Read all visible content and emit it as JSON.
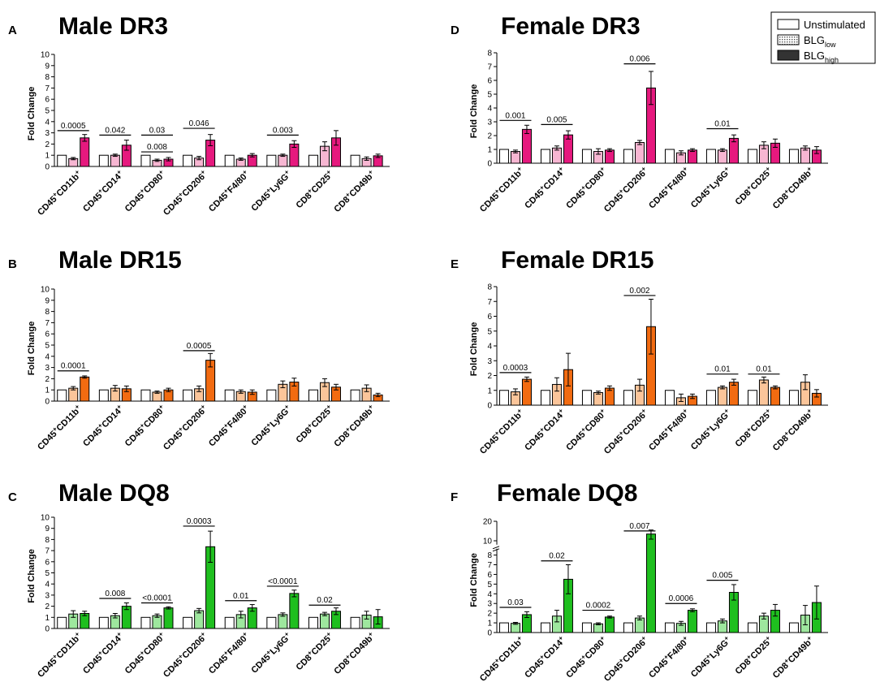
{
  "legend": {
    "items": [
      {
        "label": "Unstimulated",
        "sub": "",
        "style": "open"
      },
      {
        "label": "BLG",
        "sub": "low",
        "style": "dotted"
      },
      {
        "label": "BLG",
        "sub": "high",
        "style": "dark"
      }
    ]
  },
  "chart_data": [
    {
      "panel": "A",
      "title": "Male  DR3",
      "type": "bar",
      "ylabel": "Fold Change",
      "ylim": [
        0,
        10
      ],
      "yticks": [
        0,
        1,
        2,
        3,
        4,
        5,
        6,
        7,
        8,
        9,
        10
      ],
      "color_low": "#f7b6d2",
      "color_high": "#e6197e",
      "categories": [
        [
          "CD45",
          "+",
          "CD11b",
          "+"
        ],
        [
          "CD45",
          "+",
          "CD14",
          "+"
        ],
        [
          "CD45",
          "+",
          "CD80",
          "+"
        ],
        [
          "CD45",
          "+",
          "CD206",
          "+"
        ],
        [
          "CD45",
          "+",
          "F4/80",
          "+"
        ],
        [
          "CD45",
          "+",
          "Ly6G",
          "+"
        ],
        [
          "CD8",
          "+",
          "CD25",
          "+"
        ],
        [
          "CD8",
          "+",
          "CD49b",
          "+"
        ]
      ],
      "series": [
        {
          "name": "Unstimulated",
          "values": [
            1,
            1,
            1,
            1,
            1,
            1,
            1,
            1
          ],
          "errors": [
            0,
            0,
            0,
            0,
            0,
            0,
            0,
            0
          ]
        },
        {
          "name": "BLG low",
          "values": [
            0.7,
            1.0,
            0.55,
            0.75,
            0.65,
            1.0,
            1.8,
            0.7
          ],
          "errors": [
            0.1,
            0.1,
            0.1,
            0.15,
            0.1,
            0.1,
            0.4,
            0.15
          ]
        },
        {
          "name": "BLG high",
          "values": [
            2.55,
            1.9,
            0.65,
            2.35,
            1.0,
            2.0,
            2.55,
            0.95
          ],
          "errors": [
            0.3,
            0.45,
            0.15,
            0.5,
            0.15,
            0.3,
            0.65,
            0.15
          ]
        }
      ],
      "sig": [
        {
          "label": "0.0005",
          "from": 0,
          "to": 0,
          "y": 3.2
        },
        {
          "label": "0.042",
          "from": 1,
          "to": 1,
          "y": 2.8
        },
        {
          "label": "0.008",
          "from": 2,
          "to": 2,
          "y": 1.3
        },
        {
          "label": "0.03",
          "from": 2,
          "to": 2,
          "y": 2.8
        },
        {
          "label": "0.046",
          "from": 3,
          "to": 3,
          "y": 3.4
        },
        {
          "label": "0.003",
          "from": 5,
          "to": 5,
          "y": 2.8
        }
      ]
    },
    {
      "panel": "D",
      "title": "Female  DR3",
      "type": "bar",
      "ylabel": "Fold Change",
      "ylim": [
        0,
        8
      ],
      "yticks": [
        0,
        1,
        2,
        3,
        4,
        5,
        6,
        7,
        8
      ],
      "color_low": "#f7b6d2",
      "color_high": "#e6197e",
      "categories": [
        [
          "CD45",
          "+",
          "CD11b",
          "+"
        ],
        [
          "CD45",
          "+",
          "CD14",
          "+"
        ],
        [
          "CD45",
          "+",
          "CD80",
          "+"
        ],
        [
          "CD45",
          "+",
          "CD206",
          "+"
        ],
        [
          "CD45",
          "+",
          "F4/80",
          "+"
        ],
        [
          "CD45",
          "+",
          "Ly6G",
          "+"
        ],
        [
          "CD8",
          "+",
          "CD25",
          "+"
        ],
        [
          "CD8",
          "+",
          "CD49b",
          "+"
        ]
      ],
      "series": [
        {
          "name": "Unstimulated",
          "values": [
            1,
            1,
            1,
            1,
            1,
            1,
            1,
            1
          ],
          "errors": [
            0,
            0,
            0,
            0,
            0,
            0,
            0,
            0
          ]
        },
        {
          "name": "BLG low",
          "values": [
            0.85,
            1.1,
            0.85,
            1.5,
            0.75,
            0.95,
            1.3,
            1.1
          ],
          "errors": [
            0.1,
            0.15,
            0.2,
            0.15,
            0.15,
            0.1,
            0.25,
            0.15
          ]
        },
        {
          "name": "BLG high",
          "values": [
            2.45,
            2.05,
            0.95,
            5.45,
            0.95,
            1.8,
            1.45,
            0.95
          ],
          "errors": [
            0.3,
            0.3,
            0.1,
            1.2,
            0.1,
            0.25,
            0.3,
            0.25
          ]
        }
      ],
      "sig": [
        {
          "label": "0.001",
          "from": 0,
          "to": 0,
          "y": 3.1
        },
        {
          "label": "0.005",
          "from": 1,
          "to": 1,
          "y": 2.8
        },
        {
          "label": "0.006",
          "from": 3,
          "to": 3,
          "y": 7.2
        },
        {
          "label": "0.01",
          "from": 5,
          "to": 5,
          "y": 2.5
        }
      ]
    },
    {
      "panel": "B",
      "title": "Male DR15",
      "type": "bar",
      "ylabel": "Fold Change",
      "ylim": [
        0,
        10
      ],
      "yticks": [
        0,
        1,
        2,
        3,
        4,
        5,
        6,
        7,
        8,
        9,
        10
      ],
      "color_low": "#fbc59a",
      "color_high": "#f26b11",
      "categories": [
        [
          "CD45",
          "+",
          "CD11b",
          "+"
        ],
        [
          "CD45",
          "+",
          "CD14",
          "+"
        ],
        [
          "CD45",
          "+",
          "CD80",
          "+"
        ],
        [
          "CD45",
          "+",
          "CD206",
          "+"
        ],
        [
          "CD45",
          "+",
          "F4/80",
          "+"
        ],
        [
          "CD45",
          "+",
          "Ly6G",
          "+"
        ],
        [
          "CD8",
          "+",
          "CD25",
          "+"
        ],
        [
          "CD8",
          "+",
          "CD49b",
          "+"
        ]
      ],
      "series": [
        {
          "name": "Unstimulated",
          "values": [
            1,
            1,
            1,
            1,
            1,
            1,
            1,
            1
          ],
          "errors": [
            0,
            0,
            0,
            0,
            0,
            0,
            0,
            0
          ]
        },
        {
          "name": "BLG low",
          "values": [
            1.15,
            1.15,
            0.8,
            1.1,
            0.85,
            1.5,
            1.65,
            1.15
          ],
          "errors": [
            0.15,
            0.25,
            0.1,
            0.25,
            0.15,
            0.3,
            0.35,
            0.3
          ]
        },
        {
          "name": "BLG high",
          "values": [
            2.15,
            1.1,
            1.0,
            3.65,
            0.8,
            1.7,
            1.25,
            0.55
          ],
          "errors": [
            0.1,
            0.25,
            0.15,
            0.6,
            0.2,
            0.35,
            0.25,
            0.15
          ]
        }
      ],
      "sig": [
        {
          "label": "0.0001",
          "from": 0,
          "to": 0,
          "y": 2.7
        },
        {
          "label": "0.0005",
          "from": 3,
          "to": 3,
          "y": 4.5
        }
      ]
    },
    {
      "panel": "E",
      "title": "Female DR15",
      "type": "bar",
      "ylabel": "Fold Change",
      "ylim": [
        0,
        8
      ],
      "yticks": [
        0,
        1,
        2,
        3,
        4,
        5,
        6,
        7,
        8
      ],
      "color_low": "#fbc59a",
      "color_high": "#f26b11",
      "categories": [
        [
          "CD45",
          "+",
          "CD11b",
          "+"
        ],
        [
          "CD45",
          "+",
          "CD14",
          "+"
        ],
        [
          "CD45",
          "+",
          "CD80",
          "+"
        ],
        [
          "CD45",
          "+",
          "CD206",
          "+"
        ],
        [
          "CD45",
          "+",
          "F4/80",
          "+"
        ],
        [
          "CD45",
          "+",
          "Ly6G",
          "+"
        ],
        [
          "CD8",
          "+",
          "CD25",
          "+"
        ],
        [
          "CD8",
          "+",
          "CD49b",
          "+"
        ]
      ],
      "series": [
        {
          "name": "Unstimulated",
          "values": [
            1,
            1,
            1,
            1,
            1,
            1,
            1,
            1
          ],
          "errors": [
            0,
            0,
            0,
            0,
            0,
            0,
            0,
            0
          ]
        },
        {
          "name": "BLG low",
          "values": [
            0.9,
            1.4,
            0.85,
            1.35,
            0.5,
            1.2,
            1.7,
            1.55
          ],
          "errors": [
            0.2,
            0.45,
            0.1,
            0.4,
            0.25,
            0.1,
            0.2,
            0.5
          ]
        },
        {
          "name": "BLG high",
          "values": [
            1.75,
            2.4,
            1.15,
            5.3,
            0.6,
            1.55,
            1.2,
            0.8
          ],
          "errors": [
            0.15,
            1.1,
            0.15,
            1.85,
            0.15,
            0.2,
            0.1,
            0.25
          ]
        }
      ],
      "sig": [
        {
          "label": "0.0003",
          "from": 0,
          "to": 0,
          "y": 2.2
        },
        {
          "label": "0.002",
          "from": 3,
          "to": 3,
          "y": 7.4
        },
        {
          "label": "0.01",
          "from": 5,
          "to": 5,
          "y": 2.1
        },
        {
          "label": "0.01",
          "from": 6,
          "to": 6,
          "y": 2.1
        }
      ]
    },
    {
      "panel": "C",
      "title": "Male DQ8",
      "type": "bar",
      "ylabel": "Fold Change",
      "ylim": [
        0,
        10
      ],
      "yticks": [
        0,
        1,
        2,
        3,
        4,
        5,
        6,
        7,
        8,
        9,
        10
      ],
      "color_low": "#9ee79e",
      "color_high": "#1fbf1f",
      "categories": [
        [
          "CD45",
          "+",
          "CD11b",
          "+"
        ],
        [
          "CD45",
          "+",
          "CD14",
          "+"
        ],
        [
          "CD45",
          "+",
          "CD80",
          "+"
        ],
        [
          "CD45",
          "+",
          "CD206",
          "+"
        ],
        [
          "CD45",
          "+",
          "F4/80",
          "",
          "+"
        ],
        [
          "CD45",
          "+",
          "Ly6G",
          "+"
        ],
        [
          "CD8",
          "+",
          "CD25",
          "+"
        ],
        [
          "CD8",
          "+",
          "CD49b",
          "+"
        ]
      ],
      "series": [
        {
          "name": "Unstimulated",
          "values": [
            1,
            1,
            1,
            1,
            1,
            1,
            1,
            1
          ],
          "errors": [
            0,
            0,
            0,
            0,
            0,
            0,
            0,
            0
          ]
        },
        {
          "name": "BLG low",
          "values": [
            1.3,
            1.15,
            1.15,
            1.6,
            1.25,
            1.25,
            1.3,
            1.2
          ],
          "errors": [
            0.3,
            0.2,
            0.15,
            0.2,
            0.3,
            0.15,
            0.15,
            0.35
          ]
        },
        {
          "name": "BLG high",
          "values": [
            1.35,
            2.0,
            1.85,
            7.35,
            1.85,
            3.15,
            1.55,
            1.05
          ],
          "errors": [
            0.2,
            0.3,
            0.1,
            1.4,
            0.3,
            0.3,
            0.3,
            0.65
          ]
        }
      ],
      "sig": [
        {
          "label": "0.008",
          "from": 1,
          "to": 1,
          "y": 2.7
        },
        {
          "label": "<0.0001",
          "from": 2,
          "to": 2,
          "y": 2.3
        },
        {
          "label": "0.0003",
          "from": 3,
          "to": 3,
          "y": 9.2
        },
        {
          "label": "0.01",
          "from": 4,
          "to": 4,
          "y": 2.5
        },
        {
          "label": "<0.0001",
          "from": 5,
          "to": 5,
          "y": 3.8
        },
        {
          "label": "0.02",
          "from": 6,
          "to": 6,
          "y": 2.1
        }
      ]
    },
    {
      "panel": "F",
      "title": "Female DQ8",
      "type": "bar",
      "ylabel": "Fold Change",
      "ylim": [
        0,
        20
      ],
      "axis_break": [
        10,
        10
      ],
      "yticks": [
        0,
        1,
        2,
        3,
        4,
        5,
        6,
        7,
        8,
        10,
        20
      ],
      "color_low": "#9ee79e",
      "color_high": "#1fbf1f",
      "categories": [
        [
          "CD45",
          "+",
          "CD11b",
          "+"
        ],
        [
          "CD45",
          "+",
          "CD14",
          "+"
        ],
        [
          "CD45",
          "+",
          "CD80",
          "+"
        ],
        [
          "CD45",
          "+",
          "CD206",
          "+"
        ],
        [
          "CD45",
          "+",
          "F4/80",
          "+"
        ],
        [
          "CD45",
          "+",
          "Ly6G",
          "+"
        ],
        [
          "CD8",
          "+",
          "CD25",
          "+"
        ],
        [
          "CD8",
          "+",
          "CD49b",
          "+"
        ]
      ],
      "series": [
        {
          "name": "Unstimulated",
          "values": [
            1,
            1,
            1,
            1,
            1,
            1,
            1,
            1
          ],
          "errors": [
            0,
            0,
            0,
            0,
            0,
            0,
            0,
            0
          ]
        },
        {
          "name": "BLG low",
          "values": [
            0.95,
            1.7,
            0.9,
            1.5,
            0.95,
            1.2,
            1.7,
            1.8
          ],
          "errors": [
            0.1,
            0.6,
            0.1,
            0.2,
            0.2,
            0.2,
            0.3,
            1.0
          ]
        },
        {
          "name": "BLG high",
          "values": [
            1.85,
            5.5,
            1.6,
            12.5,
            2.3,
            4.15,
            2.3,
            3.1
          ],
          "errors": [
            0.3,
            1.5,
            0.1,
            2.0,
            0.15,
            0.8,
            0.6,
            1.7
          ]
        }
      ],
      "sig": [
        {
          "label": "0.03",
          "from": 0,
          "to": 0,
          "y": 2.6
        },
        {
          "label": "0.02",
          "from": 1,
          "to": 1,
          "y": 7.4
        },
        {
          "label": "0.0002",
          "from": 2,
          "to": 2,
          "y": 2.3
        },
        {
          "label": "0.007",
          "from": 3,
          "to": 3,
          "y": 14.0
        },
        {
          "label": "0.0006",
          "from": 4,
          "to": 4,
          "y": 3.0
        },
        {
          "label": "0.005",
          "from": 5,
          "to": 5,
          "y": 5.4
        }
      ]
    }
  ]
}
